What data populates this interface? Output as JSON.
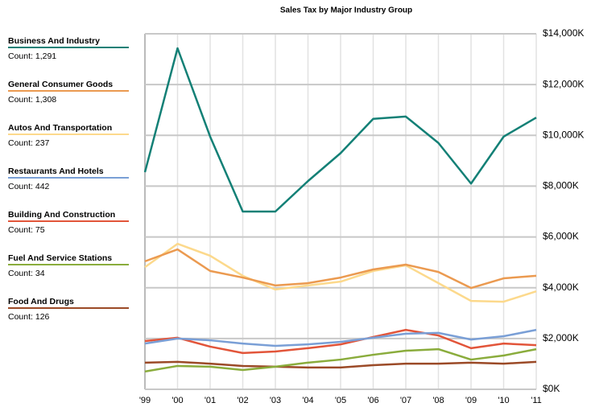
{
  "chart_data": {
    "type": "line",
    "title": "Sales Tax by Major Industry Group",
    "categories": [
      "'99",
      "'00",
      "'01",
      "'02",
      "'03",
      "'04",
      "'05",
      "'06",
      "'07",
      "'08",
      "'09",
      "'10",
      "'11"
    ],
    "ylim": [
      0,
      14000
    ],
    "yticks": [
      {
        "value": 0,
        "label": "$0K"
      },
      {
        "value": 2000,
        "label": "$2,000K"
      },
      {
        "value": 4000,
        "label": "$4,000K"
      },
      {
        "value": 6000,
        "label": "$6,000K"
      },
      {
        "value": 8000,
        "label": "$8,000K"
      },
      {
        "value": 10000,
        "label": "$10,000K"
      },
      {
        "value": 12000,
        "label": "$12,000K"
      },
      {
        "value": 14000,
        "label": "$14,000K"
      }
    ],
    "grid": true,
    "legend": "left",
    "series": [
      {
        "name": "Business And Industry",
        "count_label": "Count: 1,291",
        "color": "#138076",
        "values": [
          8550,
          13430,
          9950,
          7000,
          7000,
          8200,
          9300,
          10650,
          10740,
          9700,
          8100,
          9950,
          10700
        ]
      },
      {
        "name": "General Consumer Goods",
        "count_label": "Count: 1,308",
        "color": "#eb9a50",
        "values": [
          5040,
          5510,
          4660,
          4400,
          4090,
          4180,
          4400,
          4720,
          4910,
          4620,
          3990,
          4370,
          4470
        ]
      },
      {
        "name": "Autos And Transportation",
        "count_label": "Count: 237",
        "color": "#fcd98c",
        "values": [
          4810,
          5730,
          5260,
          4470,
          3930,
          4090,
          4240,
          4660,
          4880,
          4180,
          3480,
          3450,
          3860
        ]
      },
      {
        "name": "Restaurants And Hotels",
        "count_label": "Count: 442",
        "color": "#7a9fd6",
        "values": [
          1800,
          2000,
          1930,
          1800,
          1710,
          1770,
          1870,
          2030,
          2190,
          2220,
          1960,
          2090,
          2340
        ]
      },
      {
        "name": "Building And Construction",
        "count_label": "Count: 75",
        "color": "#e2553a",
        "values": [
          1900,
          2030,
          1680,
          1430,
          1490,
          1620,
          1770,
          2060,
          2340,
          2120,
          1620,
          1800,
          1740
        ]
      },
      {
        "name": "Fuel And Service Stations",
        "count_label": "Count: 34",
        "color": "#8aac3c",
        "values": [
          700,
          920,
          890,
          760,
          890,
          1050,
          1170,
          1360,
          1520,
          1580,
          1170,
          1330,
          1580
        ]
      },
      {
        "name": "Food And Drugs",
        "count_label": "Count: 126",
        "color": "#9b4a27",
        "values": [
          1050,
          1080,
          1010,
          920,
          890,
          860,
          860,
          950,
          1010,
          1010,
          1050,
          1010,
          1080
        ]
      }
    ]
  }
}
